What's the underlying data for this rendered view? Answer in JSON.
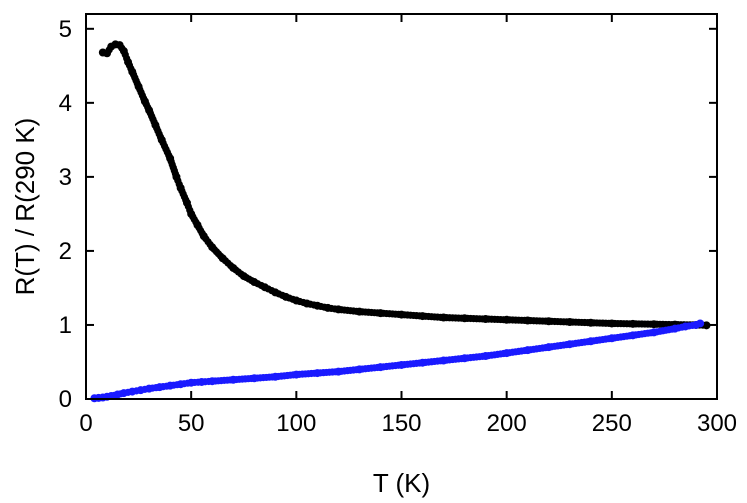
{
  "chart_data": {
    "type": "scatter",
    "title": "",
    "xlabel": "T (K)",
    "ylabel": "R(T) / R(290 K)",
    "xlim": [
      0,
      300
    ],
    "ylim": [
      0,
      5.2
    ],
    "xticks": [
      0,
      50,
      100,
      150,
      200,
      250,
      300
    ],
    "yticks": [
      0,
      1,
      2,
      3,
      4,
      5
    ],
    "grid": false,
    "series": [
      {
        "color": "#000000",
        "points": [
          [
            8,
            4.68
          ],
          [
            10,
            4.67
          ],
          [
            12,
            4.76
          ],
          [
            14,
            4.79
          ],
          [
            16,
            4.78
          ],
          [
            18,
            4.7
          ],
          [
            20,
            4.55
          ],
          [
            22,
            4.42
          ],
          [
            25,
            4.22
          ],
          [
            28,
            4.02
          ],
          [
            30,
            3.9
          ],
          [
            33,
            3.7
          ],
          [
            36,
            3.5
          ],
          [
            40,
            3.25
          ],
          [
            43,
            3.0
          ],
          [
            45,
            2.85
          ],
          [
            48,
            2.65
          ],
          [
            50,
            2.5
          ],
          [
            53,
            2.35
          ],
          [
            56,
            2.2
          ],
          [
            60,
            2.05
          ],
          [
            65,
            1.9
          ],
          [
            70,
            1.77
          ],
          [
            75,
            1.66
          ],
          [
            80,
            1.58
          ],
          [
            85,
            1.51
          ],
          [
            90,
            1.44
          ],
          [
            95,
            1.38
          ],
          [
            100,
            1.33
          ],
          [
            105,
            1.29
          ],
          [
            110,
            1.26
          ],
          [
            115,
            1.23
          ],
          [
            120,
            1.21
          ],
          [
            130,
            1.18
          ],
          [
            140,
            1.16
          ],
          [
            150,
            1.14
          ],
          [
            160,
            1.12
          ],
          [
            170,
            1.1
          ],
          [
            180,
            1.09
          ],
          [
            190,
            1.08
          ],
          [
            200,
            1.07
          ],
          [
            210,
            1.06
          ],
          [
            220,
            1.05
          ],
          [
            230,
            1.04
          ],
          [
            240,
            1.03
          ],
          [
            250,
            1.02
          ],
          [
            260,
            1.015
          ],
          [
            270,
            1.01
          ],
          [
            280,
            1.005
          ],
          [
            290,
            1.0
          ],
          [
            295,
            0.995
          ]
        ]
      },
      {
        "color": "#1a1aff",
        "points": [
          [
            4,
            0.01
          ],
          [
            6,
            0.015
          ],
          [
            8,
            0.02
          ],
          [
            10,
            0.03
          ],
          [
            12,
            0.04
          ],
          [
            15,
            0.06
          ],
          [
            18,
            0.08
          ],
          [
            22,
            0.1
          ],
          [
            26,
            0.12
          ],
          [
            30,
            0.14
          ],
          [
            35,
            0.16
          ],
          [
            40,
            0.18
          ],
          [
            45,
            0.2
          ],
          [
            50,
            0.22
          ],
          [
            55,
            0.23
          ],
          [
            60,
            0.24
          ],
          [
            70,
            0.26
          ],
          [
            80,
            0.28
          ],
          [
            90,
            0.3
          ],
          [
            100,
            0.33
          ],
          [
            110,
            0.35
          ],
          [
            120,
            0.37
          ],
          [
            130,
            0.4
          ],
          [
            140,
            0.43
          ],
          [
            150,
            0.46
          ],
          [
            160,
            0.49
          ],
          [
            170,
            0.52
          ],
          [
            180,
            0.55
          ],
          [
            190,
            0.58
          ],
          [
            200,
            0.62
          ],
          [
            210,
            0.66
          ],
          [
            220,
            0.7
          ],
          [
            230,
            0.74
          ],
          [
            240,
            0.78
          ],
          [
            250,
            0.82
          ],
          [
            260,
            0.86
          ],
          [
            270,
            0.9
          ],
          [
            280,
            0.95
          ],
          [
            285,
            0.98
          ],
          [
            290,
            1.0
          ],
          [
            292,
            1.02
          ]
        ]
      }
    ]
  }
}
